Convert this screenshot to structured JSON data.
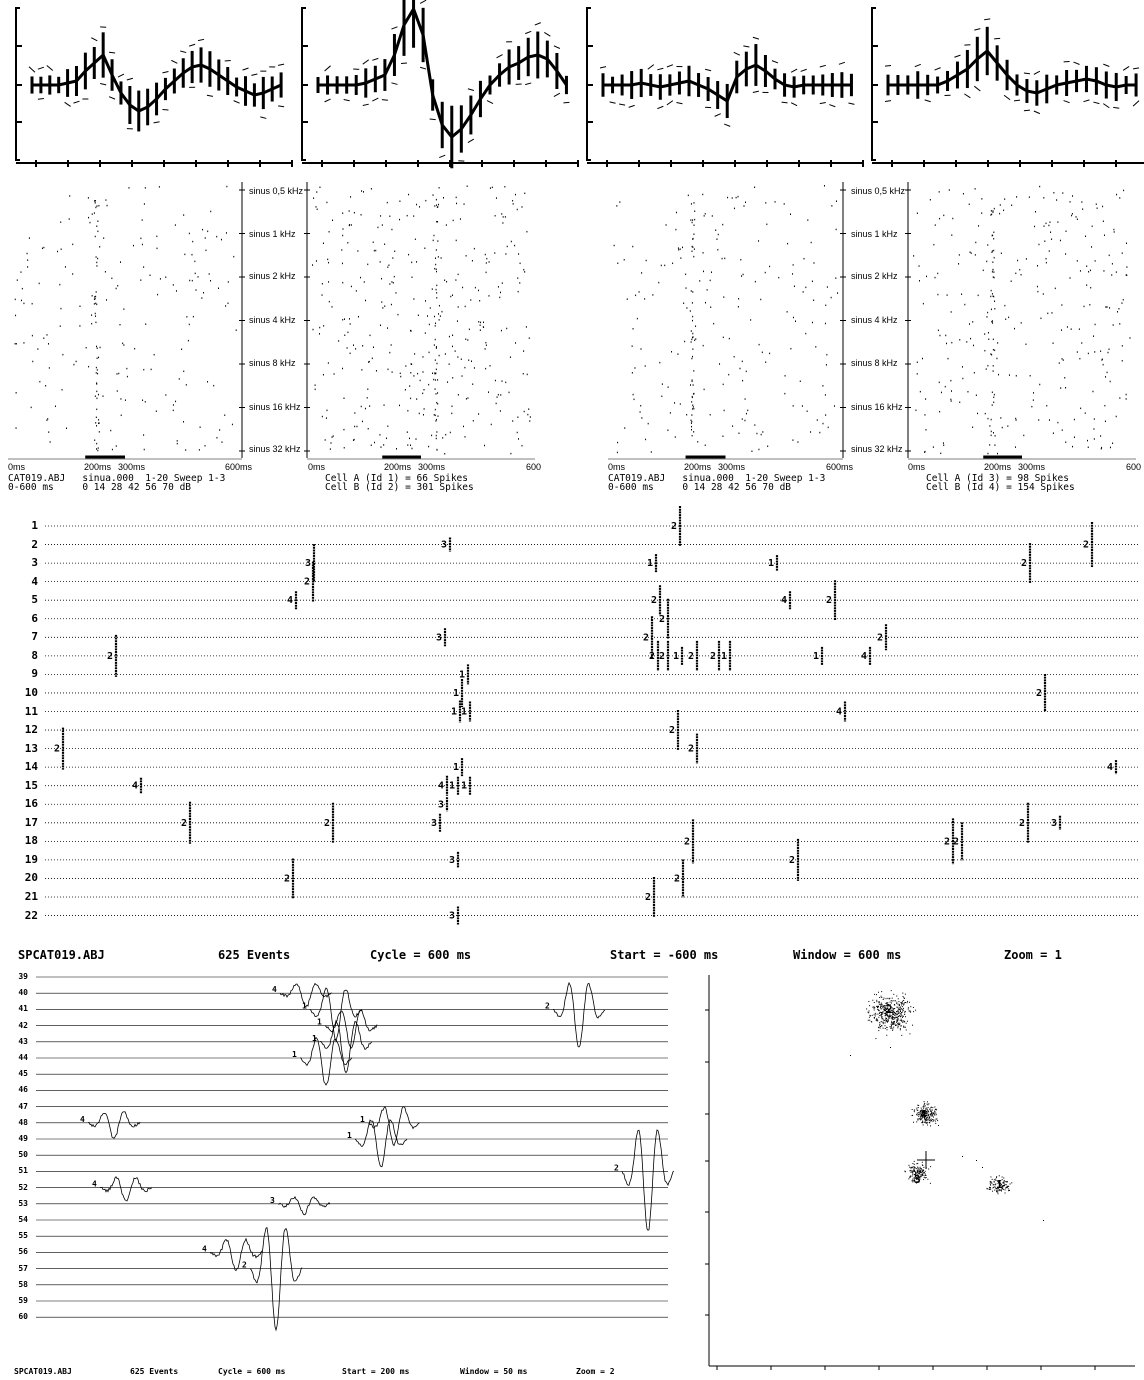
{
  "raster_a": {
    "freq_labels": [
      "sinus 0,5 kHz",
      "sinus 1 kHz",
      "sinus 2 kHz",
      "sinus 4 kHz",
      "sinus 8 kHz",
      "sinus 16 kHz",
      "sinus 32 kHz"
    ],
    "time_left": [
      "0ms",
      "200ms",
      "300ms",
      "600ms"
    ],
    "time_right": [
      "0ms",
      "200ms",
      "300ms",
      "600"
    ],
    "info_line1": "CAT019.ABJ   sinua.000  1-20 Sweep 1-3",
    "info_line2": "0-600 ms     0 14 28 42 56 70 dB",
    "cell_line1": "Cell A (Id 1) = 66 Spikes",
    "cell_line2": "Cell B (Id 2) = 301 Spikes"
  },
  "raster_b": {
    "freq_labels": [
      "sinus 0,5 kHz",
      "sinus 1 kHz",
      "sinus 2 kHz",
      "sinus 4  kHz",
      "sinus 8 kHz",
      "sinus 16 kHz",
      "sinus 32 kHz"
    ],
    "time_left": [
      "0ms",
      "200ms",
      "300ms",
      "600ms"
    ],
    "time_right": [
      "0ms",
      "200ms",
      "300ms",
      "600"
    ],
    "info_line1": "CAT019.ABJ   sinua.000  1-20 Sweep 1-3",
    "info_line2": "0-600 ms     0 14 28 42 56 70 dB",
    "cell_line1": "Cell A (Id 3) = 98 Spikes",
    "cell_line2": "Cell B (Id 4) = 154 Spikes"
  },
  "event_rows_top": [
    "1",
    "2",
    "3",
    "4",
    "5",
    "6",
    "7",
    "8",
    "9",
    "10",
    "11",
    "12",
    "13",
    "14",
    "15",
    "16",
    "17",
    "18",
    "19",
    "20",
    "21",
    "22"
  ],
  "status_top": {
    "file": "SPCAT019.ABJ",
    "events": "625 Events",
    "cycle": "Cycle = 600 ms",
    "start": "Start = -600 ms",
    "window": "Window = 600 ms",
    "zoom": "Zoom = 1"
  },
  "event_rows_bottom": [
    "39",
    "40",
    "41",
    "42",
    "43",
    "44",
    "45",
    "46",
    "47",
    "48",
    "49",
    "50",
    "51",
    "52",
    "53",
    "54",
    "55",
    "56",
    "57",
    "58",
    "59",
    "60"
  ],
  "status_bottom": {
    "file": "SPCAT019.ABJ",
    "events": "625 Events",
    "cycle": "Cycle = 600 ms",
    "start": "Start = 200 ms",
    "window": "Window = 50 ms",
    "zoom": "Zoom = 2"
  },
  "cluster_labels": [
    "2",
    "4",
    "3",
    "1"
  ],
  "spike_markers": [
    "1",
    "2",
    "3",
    "4"
  ]
}
